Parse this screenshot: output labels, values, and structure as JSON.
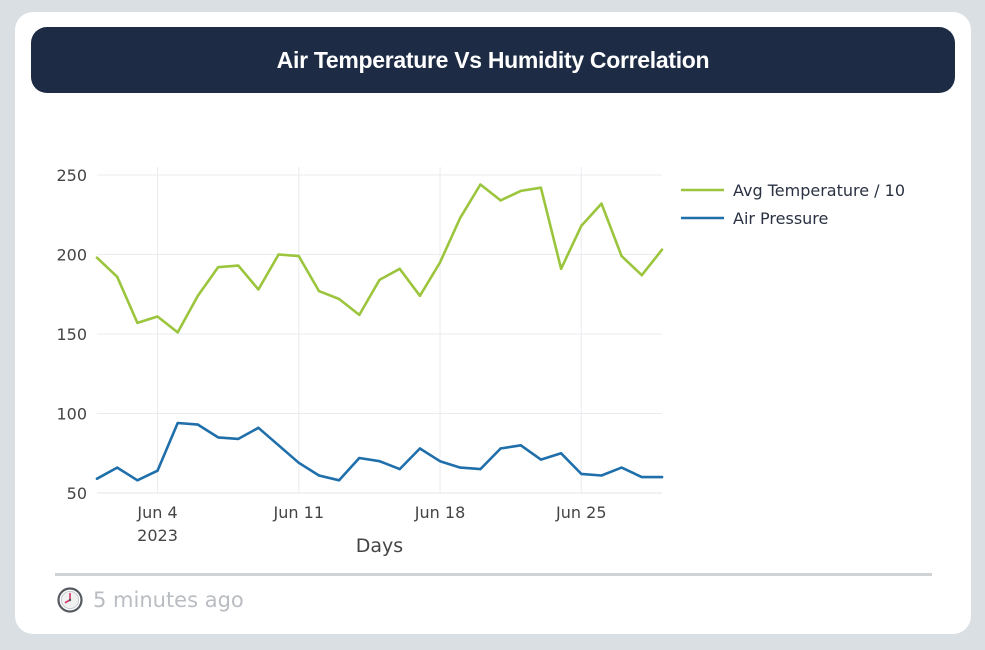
{
  "card": {
    "title": "Air Temperature Vs Humidity Correlation",
    "footer_time": "5 minutes ago",
    "footer_icon": "clock-icon"
  },
  "colors": {
    "header_bg": "#1e2b44",
    "temperature": "#9bc53d",
    "pressure": "#1f6fab"
  },
  "chart_data": {
    "type": "line",
    "title": "",
    "xlabel": "Days",
    "ylabel": "",
    "x": [
      "2023-06-01",
      "2023-06-02",
      "2023-06-03",
      "2023-06-04",
      "2023-06-05",
      "2023-06-06",
      "2023-06-07",
      "2023-06-08",
      "2023-06-09",
      "2023-06-10",
      "2023-06-11",
      "2023-06-12",
      "2023-06-13",
      "2023-06-14",
      "2023-06-15",
      "2023-06-16",
      "2023-06-17",
      "2023-06-18",
      "2023-06-19",
      "2023-06-20",
      "2023-06-21",
      "2023-06-22",
      "2023-06-23",
      "2023-06-24",
      "2023-06-25",
      "2023-06-26",
      "2023-06-27",
      "2023-06-28",
      "2023-06-29"
    ],
    "xticks": [
      {
        "date": "2023-06-04",
        "label": "Jun 4",
        "sublabel": "2023"
      },
      {
        "date": "2023-06-11",
        "label": "Jun 11",
        "sublabel": ""
      },
      {
        "date": "2023-06-18",
        "label": "Jun 18",
        "sublabel": ""
      },
      {
        "date": "2023-06-25",
        "label": "Jun 25",
        "sublabel": ""
      }
    ],
    "yticks": [
      50,
      100,
      150,
      200,
      250
    ],
    "ylim": [
      50,
      250
    ],
    "grid": true,
    "legend_position": "right",
    "series": [
      {
        "name": "Avg Temperature / 10",
        "color": "#9bc53d",
        "values": [
          198,
          186,
          157,
          161,
          151,
          174,
          192,
          193,
          178,
          200,
          199,
          177,
          172,
          162,
          184,
          191,
          174,
          195,
          223,
          244,
          234,
          240,
          242,
          191,
          218,
          232,
          199,
          187,
          203
        ]
      },
      {
        "name": "Air Pressure",
        "color": "#1f6fab",
        "values": [
          59,
          66,
          58,
          64,
          94,
          93,
          85,
          84,
          91,
          80,
          69,
          61,
          58,
          72,
          70,
          65,
          78,
          70,
          66,
          65,
          78,
          80,
          71,
          75,
          62,
          61,
          66,
          60,
          60
        ]
      }
    ]
  }
}
